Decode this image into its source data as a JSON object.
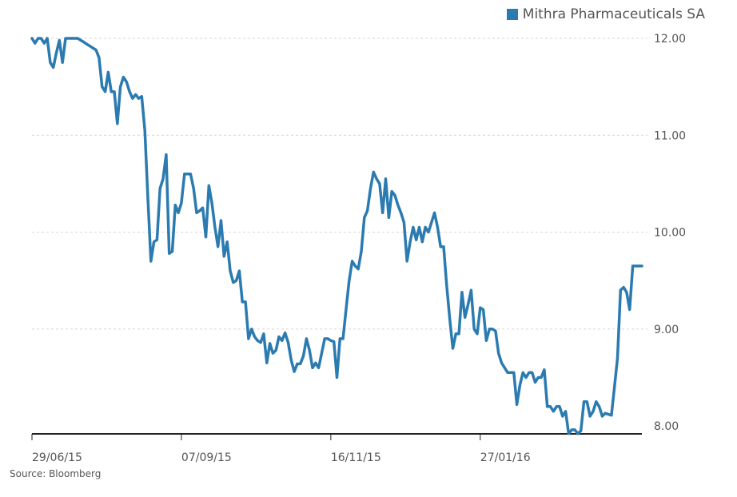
{
  "legend": {
    "label": "Mithra Pharmaceuticals SA",
    "color": "#2b7bb0"
  },
  "source": "Source: Bloomberg",
  "chart_data": {
    "type": "line",
    "title": "",
    "xlabel": "",
    "ylabel": "",
    "ylim": [
      8.0,
      12.0
    ],
    "y_ticks": [
      "12.00",
      "11.00",
      "10.00",
      "9.00",
      "8.00"
    ],
    "y_tick_values": [
      12.0,
      11.0,
      10.0,
      9.0,
      8.0
    ],
    "x_ticks": [
      "29/06/15",
      "07/09/15",
      "16/11/15",
      "27/01/16"
    ],
    "x_tick_index": [
      0,
      49,
      98,
      147
    ],
    "grid": true,
    "legend_position": "top-right",
    "series": [
      {
        "name": "Mithra Pharmaceuticals SA",
        "color": "#2b7bb0",
        "values": [
          12.0,
          11.95,
          12.0,
          12.0,
          11.95,
          12.0,
          11.75,
          11.7,
          11.85,
          11.98,
          11.75,
          12.0,
          12.0,
          12.0,
          12.0,
          12.0,
          11.98,
          11.96,
          11.94,
          11.92,
          11.9,
          11.88,
          11.8,
          11.5,
          11.45,
          11.65,
          11.45,
          11.45,
          11.12,
          11.5,
          11.6,
          11.55,
          11.45,
          11.38,
          11.42,
          11.38,
          11.4,
          11.05,
          10.35,
          9.7,
          9.9,
          9.92,
          10.45,
          10.55,
          10.8,
          9.78,
          9.8,
          10.28,
          10.2,
          10.3,
          10.6,
          10.6,
          10.6,
          10.45,
          10.2,
          10.22,
          10.25,
          9.95,
          10.48,
          10.3,
          10.05,
          9.85,
          10.12,
          9.75,
          9.9,
          9.6,
          9.48,
          9.5,
          9.6,
          9.28,
          9.28,
          8.9,
          9.0,
          8.92,
          8.88,
          8.86,
          8.95,
          8.65,
          8.85,
          8.75,
          8.78,
          8.92,
          8.88,
          8.96,
          8.86,
          8.68,
          8.56,
          8.64,
          8.64,
          8.72,
          8.9,
          8.78,
          8.6,
          8.65,
          8.6,
          8.75,
          8.9,
          8.9,
          8.88,
          8.87,
          8.5,
          8.9,
          8.9,
          9.2,
          9.5,
          9.7,
          9.65,
          9.62,
          9.8,
          10.15,
          10.22,
          10.45,
          10.62,
          10.55,
          10.5,
          10.2,
          10.55,
          10.15,
          10.42,
          10.38,
          10.28,
          10.2,
          10.1,
          9.7,
          9.9,
          10.05,
          9.92,
          10.05,
          9.9,
          10.05,
          10.0,
          10.1,
          10.2,
          10.05,
          9.85,
          9.85,
          9.45,
          9.1,
          8.8,
          8.95,
          8.95,
          9.38,
          9.12,
          9.25,
          9.4,
          9.0,
          8.95,
          9.22,
          9.2,
          8.88,
          9.0,
          9.0,
          8.98,
          8.75,
          8.65,
          8.6,
          8.55,
          8.55,
          8.55,
          8.22,
          8.42,
          8.55,
          8.5,
          8.55,
          8.55,
          8.45,
          8.5,
          8.5,
          8.58,
          8.2,
          8.2,
          8.15,
          8.2,
          8.2,
          8.1,
          8.15,
          7.92,
          7.96,
          7.96,
          7.92,
          7.95,
          8.25,
          8.25,
          8.1,
          8.15,
          8.25,
          8.2,
          8.1,
          8.13,
          8.12,
          8.11,
          8.4,
          8.7,
          9.4,
          9.43,
          9.38,
          9.2,
          9.65,
          9.65,
          9.65,
          9.65
        ]
      }
    ]
  }
}
